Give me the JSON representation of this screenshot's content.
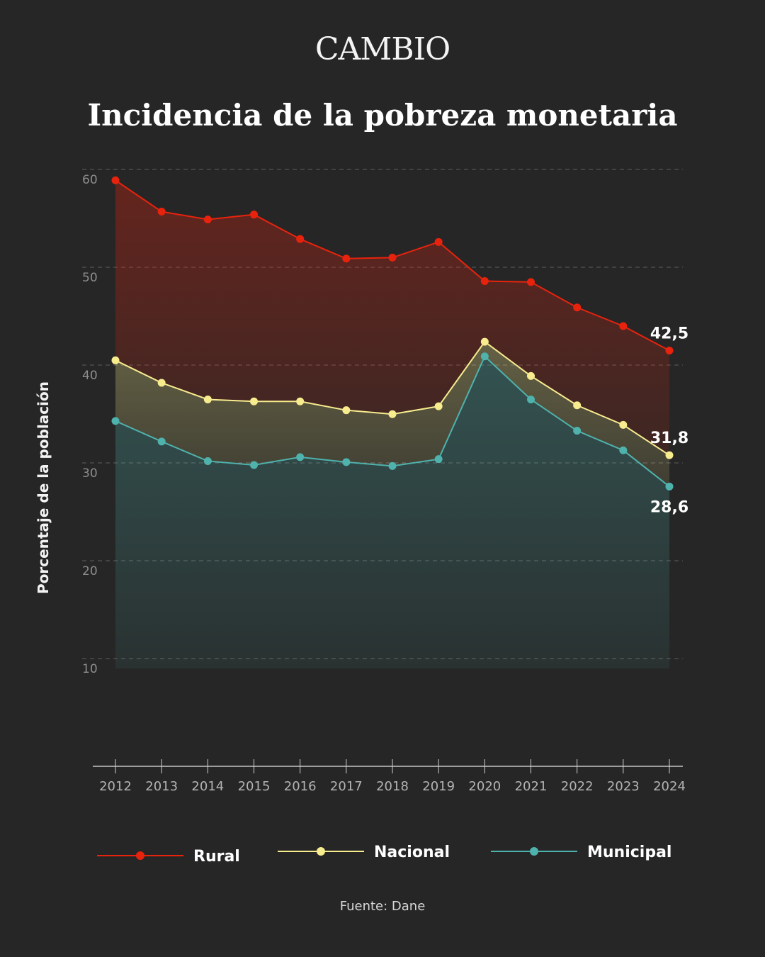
{
  "brand": "CAMBIO",
  "source": "Fuente: Dane",
  "chart_data": {
    "type": "area",
    "title": "Incidencia de la pobreza monetaria",
    "xlabel": "",
    "ylabel": "Porcentaje de la población",
    "ylim": [
      0,
      60
    ],
    "yticks": [
      10,
      20,
      30,
      40,
      50,
      60
    ],
    "grid": true,
    "categories": [
      "2012",
      "2013",
      "2014",
      "2015",
      "2016",
      "2017",
      "2018",
      "2019",
      "2020",
      "2021",
      "2022",
      "2023",
      "2024"
    ],
    "series": [
      {
        "name": "Rural",
        "color": "#e8230d",
        "end_label": "42,5",
        "values": [
          59.9,
          56.7,
          55.9,
          56.4,
          53.9,
          51.9,
          52.0,
          53.6,
          49.6,
          49.5,
          46.9,
          45.0,
          42.5
        ]
      },
      {
        "name": "Nacional",
        "color": "#f7ec8e",
        "end_label": "31,8",
        "values": [
          41.5,
          39.2,
          37.5,
          37.3,
          37.3,
          36.4,
          36.0,
          36.8,
          43.4,
          39.9,
          36.9,
          34.9,
          31.8
        ]
      },
      {
        "name": "Municipal",
        "color": "#4fb2ad",
        "end_label": "28,6",
        "values": [
          35.3,
          33.2,
          31.2,
          30.8,
          31.6,
          31.1,
          30.7,
          31.4,
          41.9,
          37.5,
          34.3,
          32.3,
          28.6
        ]
      }
    ]
  }
}
